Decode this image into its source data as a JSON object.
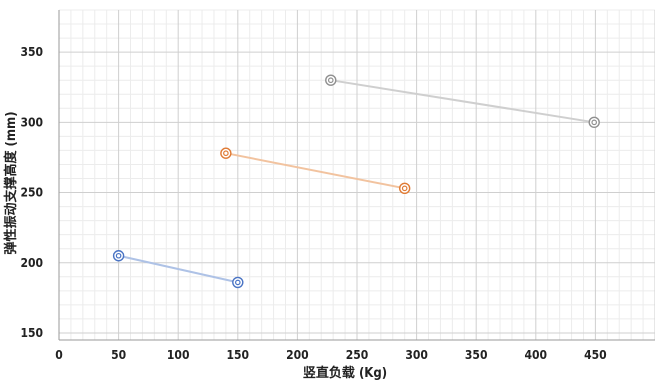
{
  "chart_data": {
    "type": "scatter",
    "title": "",
    "xlabel": "竖直负载 (Kg)",
    "ylabel": "弹性振动支撑高度 (mm)",
    "xlim": [
      0,
      500
    ],
    "ylim": [
      145,
      380
    ],
    "xticks": [
      0,
      50,
      100,
      150,
      200,
      250,
      300,
      350,
      400,
      450
    ],
    "yticks": [
      150,
      200,
      250,
      300,
      350
    ],
    "grid": true,
    "legend": "none",
    "series": [
      {
        "color": "#4a74c4",
        "line_color": "#aec2e6",
        "points": [
          [
            50,
            205
          ],
          [
            150,
            186
          ]
        ]
      },
      {
        "color": "#e07b35",
        "line_color": "#f2c39f",
        "points": [
          [
            140,
            278
          ],
          [
            290,
            253
          ]
        ]
      },
      {
        "color": "#8f8f8f",
        "line_color": "#cfcfcf",
        "points": [
          [
            228,
            330
          ],
          [
            449,
            300
          ]
        ]
      }
    ]
  }
}
